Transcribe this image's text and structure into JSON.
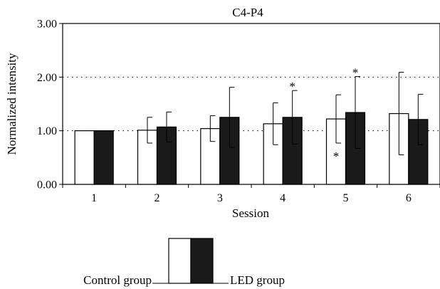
{
  "chart_data": {
    "type": "bar",
    "title": "C4-P4",
    "xlabel": "Session",
    "ylabel": "Normalized intensity",
    "categories": [
      "1",
      "2",
      "3",
      "4",
      "5",
      "6"
    ],
    "ylim": [
      0,
      3
    ],
    "yticks": [
      "0.00",
      "1.00",
      "2.00",
      "3.00"
    ],
    "grid": "dotted horizontal at 1.00 and 2.00",
    "series": [
      {
        "name": "Control group",
        "fill": "#ffffff",
        "values": [
          1.0,
          1.01,
          1.04,
          1.13,
          1.22,
          1.32
        ],
        "error": [
          0.0,
          0.24,
          0.24,
          0.39,
          0.45,
          0.77
        ],
        "significance": [
          "",
          "",
          "",
          "",
          "*",
          ""
        ]
      },
      {
        "name": "LED group",
        "fill": "#1a1a1a",
        "values": [
          1.0,
          1.07,
          1.25,
          1.25,
          1.34,
          1.21
        ],
        "error": [
          0.0,
          0.28,
          0.56,
          0.5,
          0.67,
          0.47
        ],
        "significance": [
          "",
          "",
          "",
          "*",
          "*",
          ""
        ]
      }
    ],
    "legend": {
      "position": "bottom-center",
      "left_label": "Control group",
      "right_label": "LED group"
    }
  }
}
